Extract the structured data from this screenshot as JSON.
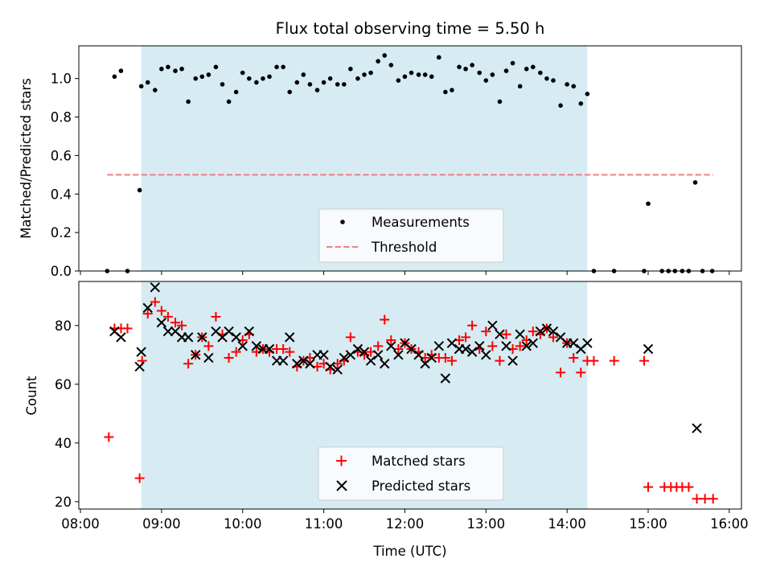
{
  "title": "Flux total observing time = 5.50 h",
  "xlabel": "Time (UTC)",
  "x_ticks": [
    "08:00",
    "09:00",
    "10:00",
    "11:00",
    "12:00",
    "13:00",
    "14:00",
    "15:00",
    "16:00"
  ],
  "colors": {
    "measurement": "#000000",
    "threshold": "#f08080",
    "matched": "#ff0000",
    "predicted": "#000000",
    "observing_window": "#add8e6"
  },
  "chart_data": [
    {
      "type": "scatter",
      "panel": "top",
      "ylabel": "Matched/Predicted stars",
      "y_ticks": [
        "0.0",
        "0.2",
        "0.4",
        "0.6",
        "0.8",
        "1.0"
      ],
      "xlim": [
        7.98,
        16.15
      ],
      "ylim": [
        0,
        1.17
      ],
      "grid": false,
      "legend": "bottom-center",
      "legend_entries": [
        "Measurements",
        "Threshold"
      ],
      "observing_window": [
        8.75,
        14.25
      ],
      "threshold": {
        "name": "Threshold",
        "value": 0.5,
        "x_start": 8.33,
        "x_end": 15.8
      },
      "series": [
        {
          "name": "Measurements",
          "points": [
            [
              8.33,
              0.0
            ],
            [
              8.42,
              1.01
            ],
            [
              8.5,
              1.04
            ],
            [
              8.58,
              0.0
            ],
            [
              8.73,
              0.42
            ],
            [
              8.75,
              0.96
            ],
            [
              8.83,
              0.98
            ],
            [
              8.92,
              0.94
            ],
            [
              9.0,
              1.05
            ],
            [
              9.08,
              1.06
            ],
            [
              9.17,
              1.04
            ],
            [
              9.25,
              1.05
            ],
            [
              9.33,
              0.88
            ],
            [
              9.42,
              1.0
            ],
            [
              9.5,
              1.01
            ],
            [
              9.58,
              1.02
            ],
            [
              9.67,
              1.06
            ],
            [
              9.75,
              0.97
            ],
            [
              9.83,
              0.88
            ],
            [
              9.92,
              0.93
            ],
            [
              10.0,
              1.03
            ],
            [
              10.08,
              1.0
            ],
            [
              10.17,
              0.98
            ],
            [
              10.25,
              1.0
            ],
            [
              10.33,
              1.01
            ],
            [
              10.42,
              1.06
            ],
            [
              10.5,
              1.06
            ],
            [
              10.58,
              0.93
            ],
            [
              10.67,
              0.98
            ],
            [
              10.75,
              1.02
            ],
            [
              10.83,
              0.97
            ],
            [
              10.92,
              0.94
            ],
            [
              11.0,
              0.98
            ],
            [
              11.08,
              1.0
            ],
            [
              11.17,
              0.97
            ],
            [
              11.25,
              0.97
            ],
            [
              11.33,
              1.05
            ],
            [
              11.42,
              1.0
            ],
            [
              11.5,
              1.02
            ],
            [
              11.58,
              1.03
            ],
            [
              11.67,
              1.09
            ],
            [
              11.75,
              1.12
            ],
            [
              11.83,
              1.07
            ],
            [
              11.92,
              0.99
            ],
            [
              12.0,
              1.01
            ],
            [
              12.08,
              1.03
            ],
            [
              12.17,
              1.02
            ],
            [
              12.25,
              1.02
            ],
            [
              12.33,
              1.01
            ],
            [
              12.42,
              1.11
            ],
            [
              12.5,
              0.93
            ],
            [
              12.58,
              0.94
            ],
            [
              12.67,
              1.06
            ],
            [
              12.75,
              1.05
            ],
            [
              12.83,
              1.07
            ],
            [
              12.92,
              1.03
            ],
            [
              13.0,
              0.99
            ],
            [
              13.08,
              1.02
            ],
            [
              13.17,
              0.88
            ],
            [
              13.25,
              1.04
            ],
            [
              13.33,
              1.08
            ],
            [
              13.42,
              0.96
            ],
            [
              13.5,
              1.05
            ],
            [
              13.58,
              1.06
            ],
            [
              13.67,
              1.03
            ],
            [
              13.75,
              1.0
            ],
            [
              13.83,
              0.99
            ],
            [
              13.92,
              0.86
            ],
            [
              14.0,
              0.97
            ],
            [
              14.08,
              0.96
            ],
            [
              14.17,
              0.87
            ],
            [
              14.25,
              0.92
            ],
            [
              14.33,
              0.0
            ],
            [
              14.58,
              0.0
            ],
            [
              14.95,
              0.0
            ],
            [
              15.0,
              0.35
            ],
            [
              15.17,
              0.0
            ],
            [
              15.25,
              0.0
            ],
            [
              15.33,
              0.0
            ],
            [
              15.42,
              0.0
            ],
            [
              15.5,
              0.0
            ],
            [
              15.58,
              0.46
            ],
            [
              15.67,
              0.0
            ],
            [
              15.79,
              0.0
            ]
          ]
        }
      ]
    },
    {
      "type": "scatter",
      "panel": "bottom",
      "ylabel": "Count",
      "y_ticks": [
        "20",
        "40",
        "60",
        "80"
      ],
      "xlim": [
        7.98,
        16.15
      ],
      "ylim": [
        17.5,
        95
      ],
      "grid": false,
      "legend": "bottom-center",
      "legend_entries": [
        "Matched stars",
        "Predicted stars"
      ],
      "observing_window": [
        8.75,
        14.25
      ],
      "series": [
        {
          "name": "Matched stars",
          "marker": "+",
          "points": [
            [
              8.35,
              42
            ],
            [
              8.42,
              79
            ],
            [
              8.5,
              79
            ],
            [
              8.58,
              79
            ],
            [
              8.73,
              28
            ],
            [
              8.76,
              68
            ],
            [
              8.83,
              84
            ],
            [
              8.92,
              88
            ],
            [
              9.0,
              85
            ],
            [
              9.08,
              83
            ],
            [
              9.17,
              81
            ],
            [
              9.25,
              80
            ],
            [
              9.33,
              67
            ],
            [
              9.42,
              70
            ],
            [
              9.5,
              76
            ],
            [
              9.58,
              73
            ],
            [
              9.67,
              83
            ],
            [
              9.75,
              77
            ],
            [
              9.83,
              69
            ],
            [
              9.92,
              71
            ],
            [
              10.0,
              75
            ],
            [
              10.08,
              77
            ],
            [
              10.17,
              71
            ],
            [
              10.25,
              72
            ],
            [
              10.33,
              71
            ],
            [
              10.42,
              72
            ],
            [
              10.5,
              72
            ],
            [
              10.58,
              71
            ],
            [
              10.67,
              66
            ],
            [
              10.75,
              68
            ],
            [
              10.83,
              69
            ],
            [
              10.92,
              66
            ],
            [
              11.0,
              67
            ],
            [
              11.08,
              65
            ],
            [
              11.17,
              67
            ],
            [
              11.25,
              68
            ],
            [
              11.33,
              76
            ],
            [
              11.42,
              71
            ],
            [
              11.5,
              70
            ],
            [
              11.58,
              71
            ],
            [
              11.67,
              73
            ],
            [
              11.75,
              82
            ],
            [
              11.83,
              75
            ],
            [
              11.92,
              72
            ],
            [
              12.0,
              74
            ],
            [
              12.08,
              72
            ],
            [
              12.17,
              71
            ],
            [
              12.25,
              69
            ],
            [
              12.33,
              70
            ],
            [
              12.42,
              69
            ],
            [
              12.5,
              69
            ],
            [
              12.58,
              68
            ],
            [
              12.67,
              75
            ],
            [
              12.75,
              76
            ],
            [
              12.83,
              80
            ],
            [
              12.92,
              72
            ],
            [
              13.0,
              78
            ],
            [
              13.08,
              73
            ],
            [
              13.17,
              68
            ],
            [
              13.25,
              77
            ],
            [
              13.33,
              72
            ],
            [
              13.42,
              73
            ],
            [
              13.5,
              75
            ],
            [
              13.58,
              78
            ],
            [
              13.67,
              77
            ],
            [
              13.75,
              79
            ],
            [
              13.83,
              76
            ],
            [
              13.92,
              64
            ],
            [
              14.0,
              74
            ],
            [
              14.08,
              69
            ],
            [
              14.17,
              64
            ],
            [
              14.25,
              68
            ],
            [
              14.33,
              68
            ],
            [
              14.58,
              68
            ],
            [
              14.95,
              68
            ],
            [
              15.0,
              25
            ],
            [
              15.2,
              25
            ],
            [
              15.28,
              25
            ],
            [
              15.35,
              25
            ],
            [
              15.42,
              25
            ],
            [
              15.5,
              25
            ],
            [
              15.6,
              21
            ],
            [
              15.7,
              21
            ],
            [
              15.8,
              21
            ]
          ]
        },
        {
          "name": "Predicted stars",
          "marker": "x",
          "points": [
            [
              8.42,
              78
            ],
            [
              8.5,
              76
            ],
            [
              8.73,
              66
            ],
            [
              8.75,
              71
            ],
            [
              8.83,
              86
            ],
            [
              8.92,
              93
            ],
            [
              9.0,
              81
            ],
            [
              9.08,
              78
            ],
            [
              9.17,
              78
            ],
            [
              9.25,
              76
            ],
            [
              9.33,
              76
            ],
            [
              9.42,
              70
            ],
            [
              9.5,
              76
            ],
            [
              9.58,
              69
            ],
            [
              9.67,
              78
            ],
            [
              9.75,
              76
            ],
            [
              9.83,
              78
            ],
            [
              9.92,
              76
            ],
            [
              10.0,
              73
            ],
            [
              10.08,
              78
            ],
            [
              10.17,
              73
            ],
            [
              10.25,
              72
            ],
            [
              10.33,
              72
            ],
            [
              10.42,
              68
            ],
            [
              10.5,
              68
            ],
            [
              10.58,
              76
            ],
            [
              10.67,
              67
            ],
            [
              10.75,
              68
            ],
            [
              10.83,
              67
            ],
            [
              10.92,
              70
            ],
            [
              11.0,
              70
            ],
            [
              11.08,
              66
            ],
            [
              11.17,
              65
            ],
            [
              11.25,
              69
            ],
            [
              11.33,
              70
            ],
            [
              11.42,
              72
            ],
            [
              11.5,
              71
            ],
            [
              11.58,
              68
            ],
            [
              11.67,
              70
            ],
            [
              11.75,
              67
            ],
            [
              11.83,
              73
            ],
            [
              11.92,
              70
            ],
            [
              12.0,
              74
            ],
            [
              12.08,
              72
            ],
            [
              12.17,
              70
            ],
            [
              12.25,
              67
            ],
            [
              12.33,
              69
            ],
            [
              12.42,
              73
            ],
            [
              12.5,
              62
            ],
            [
              12.58,
              74
            ],
            [
              12.67,
              72
            ],
            [
              12.75,
              72
            ],
            [
              12.83,
              71
            ],
            [
              12.92,
              73
            ],
            [
              13.0,
              70
            ],
            [
              13.08,
              80
            ],
            [
              13.17,
              77
            ],
            [
              13.25,
              73
            ],
            [
              13.33,
              68
            ],
            [
              13.42,
              77
            ],
            [
              13.5,
              73
            ],
            [
              13.58,
              74
            ],
            [
              13.67,
              78
            ],
            [
              13.75,
              79
            ],
            [
              13.83,
              78
            ],
            [
              13.92,
              76
            ],
            [
              14.0,
              74
            ],
            [
              14.08,
              74
            ],
            [
              14.17,
              72
            ],
            [
              14.25,
              74
            ],
            [
              15.0,
              72
            ],
            [
              15.6,
              45
            ]
          ]
        }
      ]
    }
  ]
}
